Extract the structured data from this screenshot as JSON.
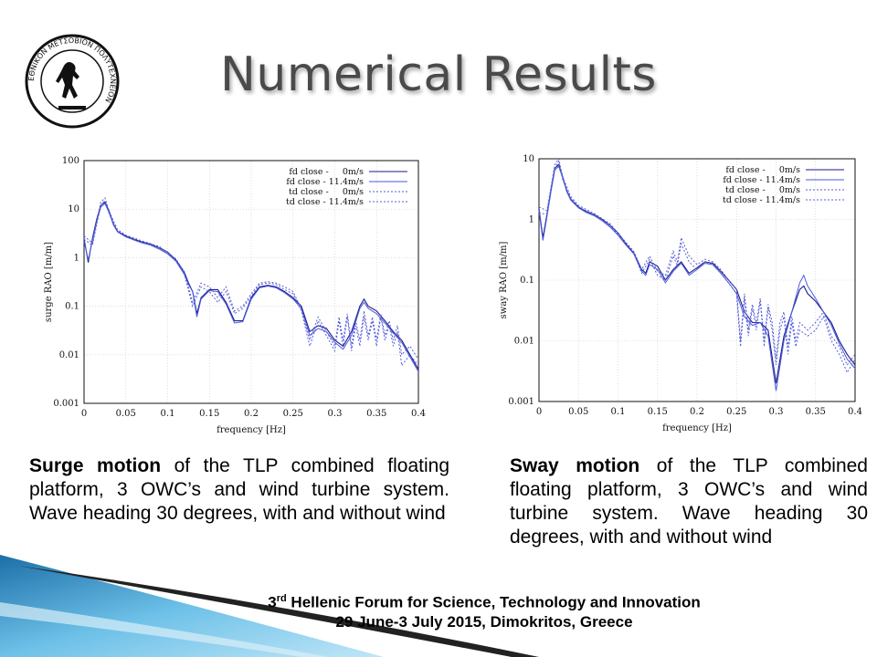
{
  "logo": {
    "icon": "ntua-logo-icon",
    "text": "ΕΘΝΙΚΟΝ ΜΕΤΣΟΒΙΟΝ ΠΟΛΥΤΕΧΝΕΙΟΝ"
  },
  "slide": {
    "title": "Numerical Results",
    "caption_left": {
      "bold": "Surge motion",
      "rest": " of the TLP combined floating platform, 3 OWC’s and wind turbine system. Wave heading 30 degrees, with and without wind"
    },
    "caption_right": {
      "bold": "Sway motion",
      "rest": " of the TLP combined floating platform, 3 OWC’s and wind turbine system. Wave heading 30 degrees, with and without wind"
    },
    "footer": {
      "line1_num": "3",
      "line1_sup": "rd",
      "line1_rest": " Hellenic Forum for Science, Technology and Innovation",
      "line2": "29 June-3 July 2015, Dimokritos, Greece"
    }
  },
  "colors": {
    "fd_0": "#1a1a8c",
    "fd_114": "#4a5ad8",
    "td_0": "#5a5ad0",
    "td_114": "#5060e0",
    "grid": "#c8c8c8",
    "title": "#4a4a4a"
  },
  "chart_data": [
    {
      "type": "line",
      "xlabel": "frequency [Hz]",
      "ylabel": "surge RAO [m/m]",
      "xlim": [
        0,
        0.4
      ],
      "ylim": [
        0.001,
        100
      ],
      "yscale": "log",
      "xticks": [
        "0",
        "0.05",
        "0.1",
        "0.15",
        "0.2",
        "0.25",
        "0.3",
        "0.35",
        "0.4"
      ],
      "yticks": [
        "100",
        "10",
        "1",
        "0.1",
        "0.01",
        "0.001"
      ],
      "grid": true,
      "legend": "top-right",
      "series": [
        {
          "name": "fd close -     0m/s",
          "style": "solid",
          "x": [
            0,
            0.005,
            0.01,
            0.015,
            0.02,
            0.025,
            0.03,
            0.035,
            0.04,
            0.05,
            0.06,
            0.07,
            0.08,
            0.09,
            0.1,
            0.11,
            0.12,
            0.125,
            0.13,
            0.135,
            0.14,
            0.15,
            0.16,
            0.17,
            0.18,
            0.19,
            0.2,
            0.21,
            0.22,
            0.23,
            0.24,
            0.25,
            0.26,
            0.27,
            0.28,
            0.29,
            0.3,
            0.31,
            0.32,
            0.33,
            0.335,
            0.34,
            0.35,
            0.36,
            0.37,
            0.38,
            0.39,
            0.4
          ],
          "y": [
            2.5,
            0.8,
            2.5,
            6,
            12,
            14,
            9,
            5,
            3.5,
            2.8,
            2.4,
            2.1,
            1.9,
            1.6,
            1.3,
            0.9,
            0.5,
            0.3,
            0.2,
            0.07,
            0.15,
            0.22,
            0.22,
            0.12,
            0.05,
            0.05,
            0.15,
            0.25,
            0.27,
            0.25,
            0.2,
            0.15,
            0.1,
            0.03,
            0.04,
            0.035,
            0.02,
            0.015,
            0.03,
            0.1,
            0.14,
            0.1,
            0.08,
            0.05,
            0.03,
            0.02,
            0.01,
            0.005
          ]
        },
        {
          "name": "fd close - 11.4m/s",
          "style": "solid",
          "x": [
            0,
            0.005,
            0.01,
            0.015,
            0.02,
            0.025,
            0.03,
            0.035,
            0.04,
            0.05,
            0.06,
            0.07,
            0.08,
            0.09,
            0.1,
            0.11,
            0.12,
            0.125,
            0.13,
            0.135,
            0.14,
            0.15,
            0.16,
            0.17,
            0.18,
            0.19,
            0.2,
            0.21,
            0.22,
            0.23,
            0.24,
            0.25,
            0.26,
            0.27,
            0.28,
            0.29,
            0.3,
            0.31,
            0.32,
            0.33,
            0.335,
            0.34,
            0.35,
            0.36,
            0.37,
            0.38,
            0.39,
            0.4
          ],
          "y": [
            2.2,
            0.9,
            2.3,
            5.5,
            11,
            13,
            8.5,
            4.8,
            3.4,
            2.7,
            2.3,
            2.0,
            1.8,
            1.5,
            1.2,
            0.85,
            0.45,
            0.28,
            0.2,
            0.06,
            0.14,
            0.21,
            0.2,
            0.11,
            0.045,
            0.048,
            0.14,
            0.24,
            0.26,
            0.24,
            0.19,
            0.14,
            0.09,
            0.025,
            0.035,
            0.03,
            0.018,
            0.013,
            0.025,
            0.09,
            0.12,
            0.09,
            0.07,
            0.045,
            0.028,
            0.018,
            0.009,
            0.0045
          ]
        },
        {
          "name": "td close -     0m/s",
          "style": "dotted",
          "x": [
            0,
            0.01,
            0.02,
            0.025,
            0.03,
            0.04,
            0.05,
            0.07,
            0.09,
            0.11,
            0.12,
            0.13,
            0.14,
            0.15,
            0.16,
            0.17,
            0.18,
            0.19,
            0.2,
            0.21,
            0.22,
            0.23,
            0.24,
            0.25,
            0.26,
            0.27,
            0.28,
            0.29,
            0.3,
            0.305,
            0.31,
            0.315,
            0.32,
            0.325,
            0.33,
            0.335,
            0.34,
            0.345,
            0.35,
            0.355,
            0.36,
            0.365,
            0.37,
            0.375,
            0.38,
            0.39,
            0.4
          ],
          "y": [
            2.8,
            2.0,
            14,
            17,
            9,
            3.8,
            2.9,
            2.2,
            1.7,
            0.95,
            0.5,
            0.12,
            0.3,
            0.25,
            0.15,
            0.25,
            0.08,
            0.1,
            0.18,
            0.3,
            0.32,
            0.3,
            0.25,
            0.2,
            0.09,
            0.02,
            0.06,
            0.03,
            0.015,
            0.06,
            0.02,
            0.07,
            0.015,
            0.05,
            0.02,
            0.08,
            0.025,
            0.06,
            0.02,
            0.07,
            0.025,
            0.05,
            0.02,
            0.04,
            0.01,
            0.015,
            0.008
          ]
        },
        {
          "name": "td close - 11.4m/s",
          "style": "dotted",
          "x": [
            0,
            0.01,
            0.02,
            0.025,
            0.03,
            0.04,
            0.05,
            0.07,
            0.09,
            0.11,
            0.12,
            0.13,
            0.14,
            0.15,
            0.16,
            0.17,
            0.18,
            0.19,
            0.2,
            0.21,
            0.22,
            0.23,
            0.24,
            0.25,
            0.26,
            0.27,
            0.28,
            0.29,
            0.3,
            0.305,
            0.31,
            0.315,
            0.32,
            0.325,
            0.33,
            0.335,
            0.34,
            0.345,
            0.35,
            0.355,
            0.36,
            0.365,
            0.37,
            0.375,
            0.38,
            0.39,
            0.4
          ],
          "y": [
            2.4,
            1.8,
            12,
            15,
            8,
            3.5,
            2.7,
            2.1,
            1.6,
            0.9,
            0.45,
            0.1,
            0.25,
            0.2,
            0.12,
            0.2,
            0.07,
            0.09,
            0.16,
            0.28,
            0.3,
            0.28,
            0.22,
            0.18,
            0.08,
            0.015,
            0.05,
            0.025,
            0.012,
            0.05,
            0.015,
            0.06,
            0.012,
            0.04,
            0.015,
            0.06,
            0.02,
            0.05,
            0.015,
            0.06,
            0.02,
            0.04,
            0.015,
            0.03,
            0.006,
            0.01,
            0.006
          ]
        }
      ]
    },
    {
      "type": "line",
      "xlabel": "frequency [Hz]",
      "ylabel": "sway RAO [m/m]",
      "xlim": [
        0,
        0.4
      ],
      "ylim": [
        0.001,
        10
      ],
      "yscale": "log",
      "xticks": [
        "0",
        "0.05",
        "0.1",
        "0.15",
        "0.2",
        "0.25",
        "0.3",
        "0.35",
        "0.4"
      ],
      "yticks": [
        "10",
        "1",
        "0.1",
        "0.01",
        "0.001"
      ],
      "grid": true,
      "legend": "top-right",
      "series": [
        {
          "name": "fd close -     0m/s",
          "style": "solid",
          "x": [
            0,
            0.005,
            0.01,
            0.015,
            0.02,
            0.025,
            0.03,
            0.035,
            0.04,
            0.05,
            0.06,
            0.07,
            0.08,
            0.09,
            0.1,
            0.11,
            0.12,
            0.13,
            0.135,
            0.14,
            0.15,
            0.16,
            0.17,
            0.18,
            0.19,
            0.2,
            0.21,
            0.22,
            0.23,
            0.24,
            0.25,
            0.26,
            0.27,
            0.28,
            0.29,
            0.3,
            0.31,
            0.32,
            0.33,
            0.335,
            0.34,
            0.35,
            0.36,
            0.37,
            0.38,
            0.39,
            0.4
          ],
          "y": [
            1.5,
            0.5,
            1.2,
            3,
            7,
            8,
            5,
            3,
            2.2,
            1.6,
            1.35,
            1.2,
            1.0,
            0.8,
            0.6,
            0.4,
            0.28,
            0.15,
            0.13,
            0.2,
            0.17,
            0.1,
            0.15,
            0.2,
            0.13,
            0.16,
            0.2,
            0.19,
            0.14,
            0.1,
            0.07,
            0.03,
            0.02,
            0.02,
            0.015,
            0.002,
            0.012,
            0.03,
            0.07,
            0.08,
            0.06,
            0.045,
            0.03,
            0.02,
            0.01,
            0.006,
            0.004
          ]
        },
        {
          "name": "fd close - 11.4m/s",
          "style": "solid",
          "x": [
            0,
            0.005,
            0.01,
            0.015,
            0.02,
            0.025,
            0.03,
            0.035,
            0.04,
            0.05,
            0.06,
            0.07,
            0.08,
            0.09,
            0.1,
            0.11,
            0.12,
            0.13,
            0.135,
            0.14,
            0.15,
            0.16,
            0.17,
            0.18,
            0.19,
            0.2,
            0.21,
            0.22,
            0.23,
            0.24,
            0.25,
            0.26,
            0.27,
            0.28,
            0.29,
            0.3,
            0.31,
            0.32,
            0.33,
            0.335,
            0.34,
            0.35,
            0.36,
            0.37,
            0.38,
            0.39,
            0.4
          ],
          "y": [
            1.4,
            0.45,
            1.1,
            2.8,
            6.5,
            7.5,
            4.8,
            2.9,
            2.1,
            1.55,
            1.3,
            1.15,
            0.95,
            0.75,
            0.55,
            0.38,
            0.27,
            0.14,
            0.12,
            0.18,
            0.15,
            0.09,
            0.14,
            0.19,
            0.12,
            0.15,
            0.19,
            0.18,
            0.13,
            0.09,
            0.06,
            0.025,
            0.018,
            0.02,
            0.012,
            0.0015,
            0.01,
            0.03,
            0.09,
            0.12,
            0.08,
            0.05,
            0.03,
            0.018,
            0.009,
            0.005,
            0.0035
          ]
        },
        {
          "name": "td close -     0m/s",
          "style": "dotted",
          "x": [
            0,
            0.01,
            0.02,
            0.025,
            0.03,
            0.04,
            0.05,
            0.07,
            0.09,
            0.11,
            0.12,
            0.13,
            0.14,
            0.15,
            0.16,
            0.17,
            0.175,
            0.18,
            0.19,
            0.2,
            0.21,
            0.22,
            0.23,
            0.24,
            0.25,
            0.255,
            0.26,
            0.265,
            0.27,
            0.275,
            0.28,
            0.285,
            0.29,
            0.295,
            0.3,
            0.305,
            0.31,
            0.315,
            0.32,
            0.325,
            0.33,
            0.34,
            0.35,
            0.36,
            0.37,
            0.38,
            0.39,
            0.4
          ],
          "y": [
            1.6,
            1.4,
            8,
            10,
            5,
            2.4,
            1.7,
            1.25,
            0.85,
            0.42,
            0.3,
            0.15,
            0.25,
            0.14,
            0.12,
            0.3,
            0.2,
            0.5,
            0.25,
            0.18,
            0.22,
            0.2,
            0.15,
            0.1,
            0.07,
            0.01,
            0.06,
            0.015,
            0.04,
            0.02,
            0.05,
            0.01,
            0.04,
            0.02,
            0.005,
            0.02,
            0.03,
            0.008,
            0.025,
            0.01,
            0.02,
            0.015,
            0.02,
            0.03,
            0.012,
            0.008,
            0.004,
            0.006
          ]
        },
        {
          "name": "td close - 11.4m/s",
          "style": "dotted",
          "x": [
            0,
            0.01,
            0.02,
            0.025,
            0.03,
            0.04,
            0.05,
            0.07,
            0.09,
            0.11,
            0.12,
            0.13,
            0.14,
            0.15,
            0.16,
            0.17,
            0.175,
            0.18,
            0.19,
            0.2,
            0.21,
            0.22,
            0.23,
            0.24,
            0.25,
            0.255,
            0.26,
            0.265,
            0.27,
            0.275,
            0.28,
            0.285,
            0.29,
            0.295,
            0.3,
            0.305,
            0.31,
            0.315,
            0.32,
            0.325,
            0.33,
            0.34,
            0.35,
            0.36,
            0.37,
            0.38,
            0.39,
            0.4
          ],
          "y": [
            1.3,
            1.2,
            7,
            9,
            4.5,
            2.2,
            1.6,
            1.2,
            0.8,
            0.4,
            0.28,
            0.13,
            0.22,
            0.12,
            0.1,
            0.25,
            0.17,
            0.4,
            0.2,
            0.15,
            0.2,
            0.18,
            0.13,
            0.09,
            0.06,
            0.008,
            0.05,
            0.012,
            0.035,
            0.015,
            0.045,
            0.008,
            0.035,
            0.015,
            0.004,
            0.015,
            0.025,
            0.006,
            0.02,
            0.008,
            0.015,
            0.012,
            0.015,
            0.025,
            0.01,
            0.006,
            0.003,
            0.005
          ]
        }
      ]
    }
  ]
}
